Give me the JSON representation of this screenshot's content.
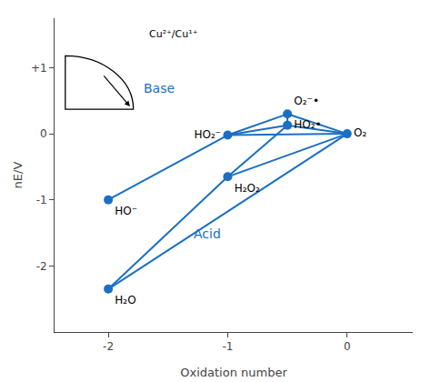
{
  "chart_data": {
    "type": "scatter",
    "xlabel": "Oxidation number",
    "ylabel": "nE/V",
    "color": "#1a6fc4",
    "grid": false,
    "points": [
      {
        "x": -2.0,
        "y": -1.0,
        "label": "HO⁻"
      },
      {
        "x": -1.0,
        "y": -0.02,
        "label": "HO₂⁻"
      },
      {
        "x": -0.5,
        "y": 0.3,
        "label": "O₂⁻•"
      },
      {
        "x": -2.0,
        "y": -2.35,
        "label": "H₂O"
      },
      {
        "x": -1.0,
        "y": -0.65,
        "label": "H₂O₂"
      },
      {
        "x": -0.5,
        "y": 0.13,
        "label": "HO₂•"
      },
      {
        "x": 0.0,
        "y": 0.0,
        "label": "O₂"
      }
    ],
    "segments": [
      [
        -2.0,
        -1.0,
        -1.0,
        -0.02
      ],
      [
        -1.0,
        -0.02,
        -0.5,
        0.3
      ],
      [
        -2.0,
        -2.35,
        -1.0,
        -0.65
      ],
      [
        -1.0,
        -0.65,
        -0.5,
        0.13
      ],
      [
        -0.5,
        0.13,
        0.0,
        0.0
      ],
      [
        -1.0,
        -0.65,
        0.0,
        0.0
      ],
      [
        -2.0,
        -2.35,
        0.0,
        0.0
      ],
      [
        -1.0,
        -0.02,
        0.0,
        0.0
      ],
      [
        -0.5,
        0.3,
        0.0,
        0.0
      ],
      [
        -1.0,
        -0.02,
        -0.5,
        0.13
      ],
      [
        -0.5,
        0.3,
        -0.5,
        0.13
      ]
    ],
    "annotations": [
      {
        "text": "Base",
        "x": -1.72,
        "y": 0.55,
        "color": "#1a6fc4"
      },
      {
        "text": "Acid",
        "x": -1.3,
        "y": -1.65,
        "color": "#1a6fc4"
      },
      {
        "text": "Cu²⁺/Cu¹⁺"
      }
    ],
    "xlim": [
      -2.45,
      0.55
    ],
    "xticks": [
      -2,
      -1,
      0
    ],
    "ylim": [
      -3.0,
      1.75
    ],
    "yticks": [
      -2,
      -1,
      0,
      {
        "value": 1,
        "label": "+1"
      }
    ]
  }
}
